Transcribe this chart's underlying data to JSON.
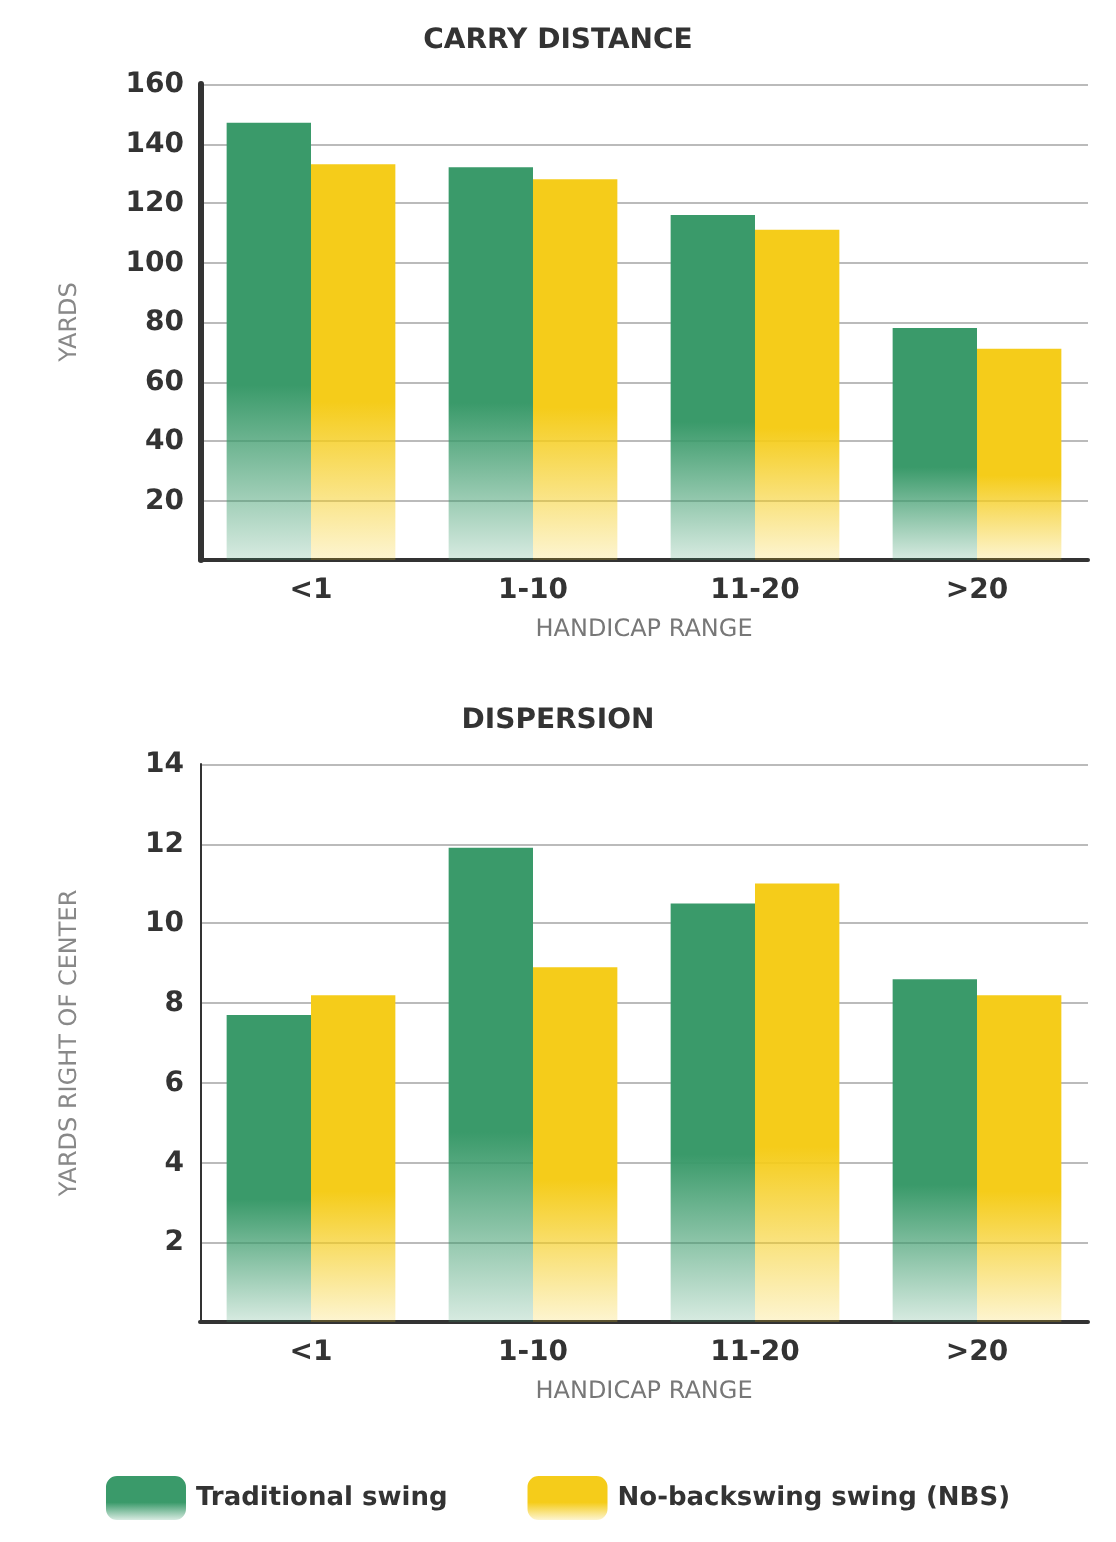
{
  "chart_data": [
    {
      "type": "bar",
      "title": "CARRY DISTANCE",
      "xlabel": "HANDICAP RANGE",
      "ylabel": "YARDS",
      "categories": [
        "<1",
        "1-10",
        "11-20",
        ">20"
      ],
      "series": [
        {
          "color": "#3a9a6a",
          "values": [
            147,
            132,
            116,
            78
          ]
        },
        {
          "color": "#f5cc1a",
          "values": [
            133,
            128,
            111,
            71
          ]
        }
      ],
      "ylim": [
        0,
        160
      ],
      "yticks": [
        20,
        40,
        60,
        80,
        100,
        120,
        140,
        160
      ],
      "grid": "y",
      "legend": false
    },
    {
      "type": "bar",
      "title": "DISPERSION",
      "xlabel": "HANDICAP RANGE",
      "ylabel": "YARDS RIGHT OF CENTER",
      "categories": [
        "<1",
        "1-10",
        "11-20",
        ">20"
      ],
      "series": [
        {
          "name": "Traditional swing",
          "color": "#3a9a6a",
          "values": [
            7.7,
            11.9,
            10.5,
            8.6
          ]
        },
        {
          "name": "No-backswing swing (NBS)",
          "color": "#f5cc1a",
          "values": [
            8.2,
            8.9,
            11.0,
            8.2
          ]
        }
      ],
      "ylim": [
        0,
        14
      ],
      "yticks": [
        2,
        4,
        6,
        8,
        10,
        12,
        14
      ],
      "grid": "y",
      "legend": "bottom"
    }
  ]
}
